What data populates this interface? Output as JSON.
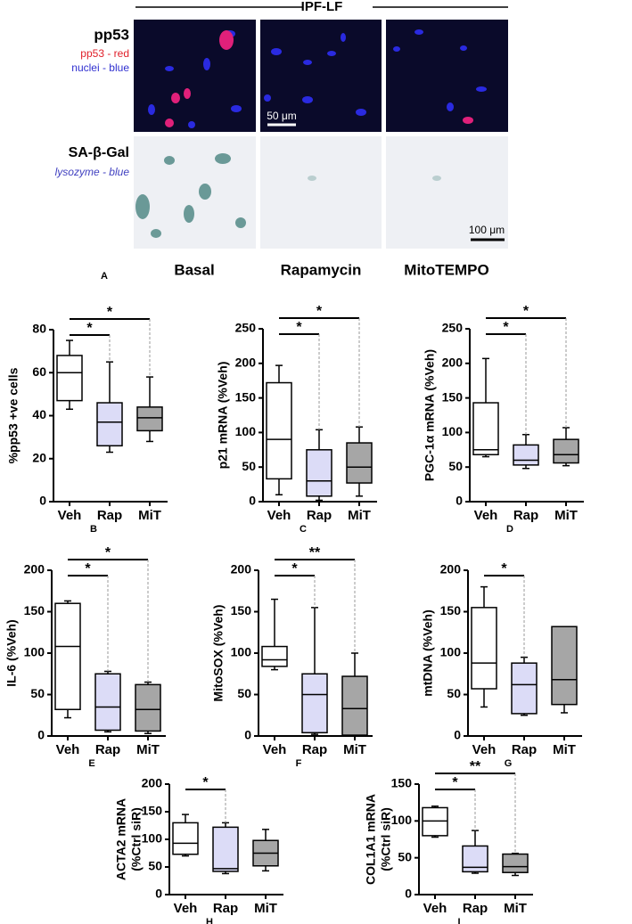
{
  "figure_a": {
    "header": "IPF-LF",
    "panel": "A",
    "rows": [
      {
        "title": "pp53",
        "legend": [
          "pp53 - red",
          "nuclei - blue"
        ],
        "scale_bar": "50 μm"
      },
      {
        "title": "SA-β-Gal",
        "legend": [
          "lysozyme - blue"
        ],
        "scale_bar": "100 μm"
      }
    ],
    "columns": [
      "Basal",
      "Rapamycin",
      "MitoTEMPO"
    ]
  },
  "chart_data": [
    {
      "type": "box",
      "panel": "B",
      "y_label": [
        "%pp53 +ve cells"
      ],
      "categories": [
        "Veh",
        "Rap",
        "MiT"
      ],
      "colors": [
        "#ffffff",
        "#dcdcf7",
        "#a6a6a6"
      ],
      "ylim": [
        0,
        80
      ],
      "yticks": [
        0,
        20,
        40,
        60,
        80
      ],
      "boxes": [
        {
          "min": 43,
          "q1": 47,
          "median": 60,
          "q3": 68,
          "max": 75
        },
        {
          "min": 23,
          "q1": 26,
          "median": 37,
          "q3": 46,
          "max": 65
        },
        {
          "min": 28,
          "q1": 33,
          "median": 39,
          "q3": 44,
          "max": 58
        }
      ],
      "significance": [
        {
          "groups": [
            "Veh",
            "Rap"
          ],
          "label": "*"
        },
        {
          "groups": [
            "Veh",
            "MiT"
          ],
          "label": "*"
        }
      ]
    },
    {
      "type": "box",
      "panel": "C",
      "y_label": [
        "p21 mRNA (%Veh)"
      ],
      "categories": [
        "Veh",
        "Rap",
        "MiT"
      ],
      "colors": [
        "#ffffff",
        "#dcdcf7",
        "#a6a6a6"
      ],
      "ylim": [
        0,
        250
      ],
      "yticks": [
        0,
        50,
        100,
        150,
        200,
        250
      ],
      "boxes": [
        {
          "min": 10,
          "q1": 33,
          "median": 90,
          "q3": 172,
          "max": 197
        },
        {
          "min": 2,
          "q1": 8,
          "median": 30,
          "q3": 75,
          "max": 104
        },
        {
          "min": 8,
          "q1": 27,
          "median": 50,
          "q3": 85,
          "max": 108
        }
      ],
      "significance": [
        {
          "groups": [
            "Veh",
            "Rap"
          ],
          "label": "*"
        },
        {
          "groups": [
            "Veh",
            "MiT"
          ],
          "label": "*"
        }
      ]
    },
    {
      "type": "box",
      "panel": "D",
      "y_label": [
        "PGC-1α mRNA (%Veh)"
      ],
      "categories": [
        "Veh",
        "Rap",
        "MiT"
      ],
      "colors": [
        "#ffffff",
        "#dcdcf7",
        "#a6a6a6"
      ],
      "ylim": [
        0,
        250
      ],
      "yticks": [
        0,
        50,
        100,
        150,
        200,
        250
      ],
      "boxes": [
        {
          "min": 65,
          "q1": 68,
          "median": 75,
          "q3": 143,
          "max": 207
        },
        {
          "min": 48,
          "q1": 53,
          "median": 60,
          "q3": 82,
          "max": 97
        },
        {
          "min": 52,
          "q1": 56,
          "median": 68,
          "q3": 90,
          "max": 107
        }
      ],
      "significance": [
        {
          "groups": [
            "Veh",
            "Rap"
          ],
          "label": "*"
        },
        {
          "groups": [
            "Veh",
            "MiT"
          ],
          "label": "*"
        }
      ]
    },
    {
      "type": "box",
      "panel": "E",
      "y_label": [
        "IL-6 (%Veh)"
      ],
      "categories": [
        "Veh",
        "Rap",
        "MiT"
      ],
      "colors": [
        "#ffffff",
        "#dcdcf7",
        "#a6a6a6"
      ],
      "ylim": [
        0,
        200
      ],
      "yticks": [
        0,
        50,
        100,
        150,
        200
      ],
      "boxes": [
        {
          "min": 22,
          "q1": 32,
          "median": 108,
          "q3": 160,
          "max": 163
        },
        {
          "min": 5,
          "q1": 7,
          "median": 35,
          "q3": 75,
          "max": 78
        },
        {
          "min": 3,
          "q1": 6,
          "median": 32,
          "q3": 62,
          "max": 65
        }
      ],
      "significance": [
        {
          "groups": [
            "Veh",
            "Rap"
          ],
          "label": "*"
        },
        {
          "groups": [
            "Veh",
            "MiT"
          ],
          "label": "*"
        }
      ]
    },
    {
      "type": "box",
      "panel": "F",
      "y_label": [
        "MitoSOX (%Veh)"
      ],
      "categories": [
        "Veh",
        "Rap",
        "MiT"
      ],
      "colors": [
        "#ffffff",
        "#dcdcf7",
        "#a6a6a6"
      ],
      "ylim": [
        0,
        200
      ],
      "yticks": [
        0,
        50,
        100,
        150,
        200
      ],
      "boxes": [
        {
          "min": 80,
          "q1": 84,
          "median": 92,
          "q3": 108,
          "max": 165
        },
        {
          "min": 2,
          "q1": 4,
          "median": 50,
          "q3": 75,
          "max": 155
        },
        {
          "min": 0,
          "q1": 1,
          "median": 33,
          "q3": 72,
          "max": 100
        }
      ],
      "significance": [
        {
          "groups": [
            "Veh",
            "Rap"
          ],
          "label": "*"
        },
        {
          "groups": [
            "Veh",
            "MiT"
          ],
          "label": "**"
        }
      ]
    },
    {
      "type": "box",
      "panel": "G",
      "y_label": [
        "mtDNA (%Veh)"
      ],
      "categories": [
        "Veh",
        "Rap",
        "MiT"
      ],
      "colors": [
        "#ffffff",
        "#dcdcf7",
        "#a6a6a6"
      ],
      "ylim": [
        0,
        200
      ],
      "yticks": [
        0,
        50,
        100,
        150,
        200
      ],
      "boxes": [
        {
          "min": 35,
          "q1": 57,
          "median": 88,
          "q3": 155,
          "max": 180
        },
        {
          "min": 25,
          "q1": 27,
          "median": 62,
          "q3": 88,
          "max": 95
        },
        {
          "min": 28,
          "q1": 38,
          "median": 68,
          "q3": 132,
          "max": 132
        }
      ],
      "significance": [
        {
          "groups": [
            "Veh",
            "Rap"
          ],
          "label": "*"
        }
      ]
    },
    {
      "type": "box",
      "panel": "H",
      "y_label": [
        "ACTA2 mRNA",
        "(%Ctrl siR)"
      ],
      "categories": [
        "Veh",
        "Rap",
        "MiT"
      ],
      "colors": [
        "#ffffff",
        "#dcdcf7",
        "#a6a6a6"
      ],
      "ylim": [
        0,
        200
      ],
      "yticks": [
        0,
        50,
        100,
        150,
        200
      ],
      "boxes": [
        {
          "min": 70,
          "q1": 73,
          "median": 93,
          "q3": 130,
          "max": 145
        },
        {
          "min": 38,
          "q1": 42,
          "median": 47,
          "q3": 122,
          "max": 130
        },
        {
          "min": 43,
          "q1": 52,
          "median": 75,
          "q3": 98,
          "max": 118
        }
      ],
      "significance": [
        {
          "groups": [
            "Veh",
            "Rap"
          ],
          "label": "*"
        }
      ]
    },
    {
      "type": "box",
      "panel": "I",
      "y_label": [
        "COL1A1 mRNA",
        "(%Ctrl siR)"
      ],
      "categories": [
        "Veh",
        "Rap",
        "MiT"
      ],
      "colors": [
        "#ffffff",
        "#dcdcf7",
        "#a6a6a6"
      ],
      "ylim": [
        0,
        150
      ],
      "yticks": [
        0,
        50,
        100,
        150
      ],
      "boxes": [
        {
          "min": 78,
          "q1": 80,
          "median": 100,
          "q3": 118,
          "max": 120
        },
        {
          "min": 29,
          "q1": 31,
          "median": 37,
          "q3": 66,
          "max": 87
        },
        {
          "min": 26,
          "q1": 30,
          "median": 38,
          "q3": 55,
          "max": 56
        }
      ],
      "significance": [
        {
          "groups": [
            "Veh",
            "Rap"
          ],
          "label": "*"
        },
        {
          "groups": [
            "Veh",
            "MiT"
          ],
          "label": "**"
        }
      ]
    }
  ]
}
